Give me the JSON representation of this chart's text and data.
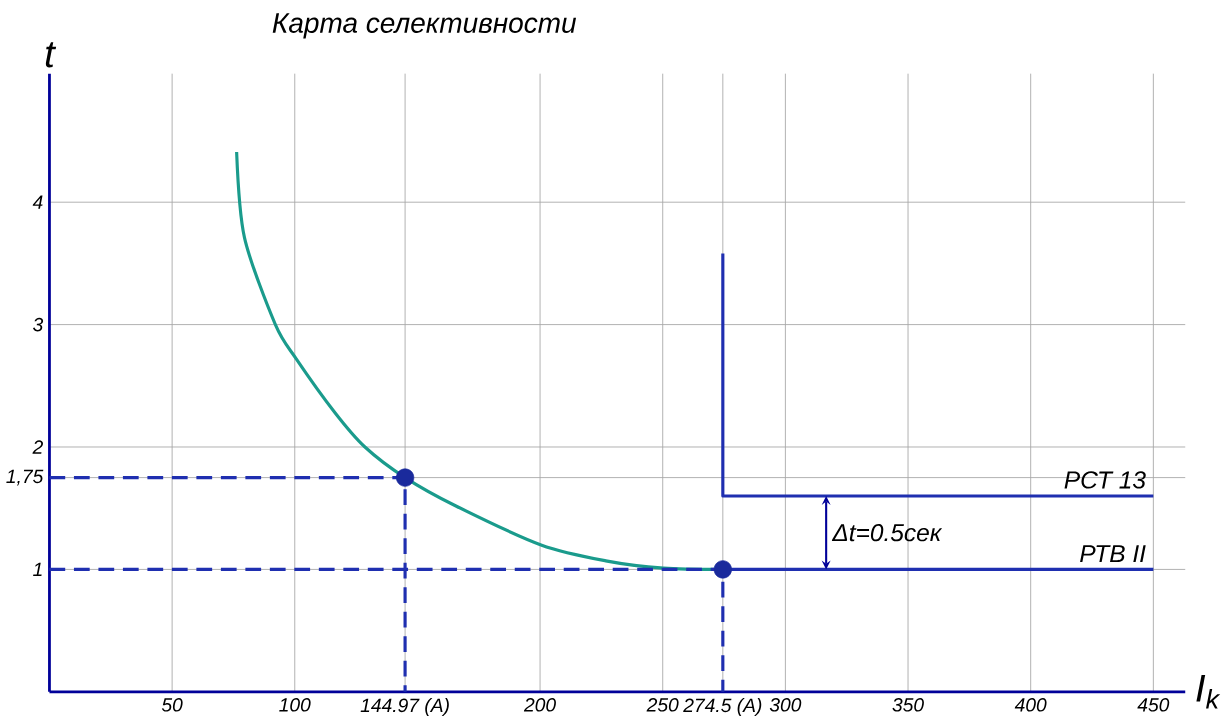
{
  "chart_data": {
    "type": "line",
    "title": "Карта селективности",
    "xlabel": "I$_{k}$",
    "ylabel": "t",
    "xlim": [
      0,
      463
    ],
    "ylim": [
      0,
      5.05
    ],
    "xticks": [
      50,
      100,
      {
        "value": 144.97,
        "label": "144.97 (A)"
      },
      200,
      250,
      {
        "value": 274.5,
        "label": "274.5 (A)"
      },
      300,
      350,
      400,
      450
    ],
    "yticks": [
      1,
      {
        "value": 1.75,
        "label": "1,75"
      },
      2,
      3,
      4
    ],
    "grid": true,
    "line_style": "solid",
    "marker": "none",
    "series": [
      {
        "color": "#1a9b8c",
        "x": [
          76.3,
          79.5,
          92.1,
          100.6,
          116.4,
          128.6,
          144.97,
          165.5,
          200.4,
          226.8,
          250.3,
          274.5
        ],
        "values": [
          4.41,
          3.71,
          3.0,
          2.72,
          2.28,
          2.0,
          1.75,
          1.52,
          1.2,
          1.07,
          1.01,
          1.0
        ]
      },
      {
        "name": "РТВ II",
        "color": "#1f2fb0",
        "x": [
          274.5,
          450
        ],
        "values": [
          1,
          1
        ]
      },
      {
        "name": "РСТ 13",
        "color": "#1f2fb0",
        "x": [
          274.5,
          274.5,
          450
        ],
        "values": [
          3.58,
          1.6,
          1.6
        ]
      },
      {
        "color": "#1f2fb0",
        "line_style": "dashed",
        "x": [
          0,
          144.97,
          144.97
        ],
        "values": [
          1.75,
          1.75,
          0
        ]
      },
      {
        "color": "#1f2fb0",
        "line_style": "dashed",
        "x": [
          0,
          274.5,
          274.5
        ],
        "values": [
          1,
          1,
          0
        ]
      },
      {
        "type": "scatter",
        "marker": "circle",
        "color": "#1a2a9c",
        "x": [
          144.97,
          274.5
        ],
        "values": [
          1.75,
          1
        ]
      }
    ],
    "annotations": [
      "Δt=0.5сек"
    ]
  }
}
